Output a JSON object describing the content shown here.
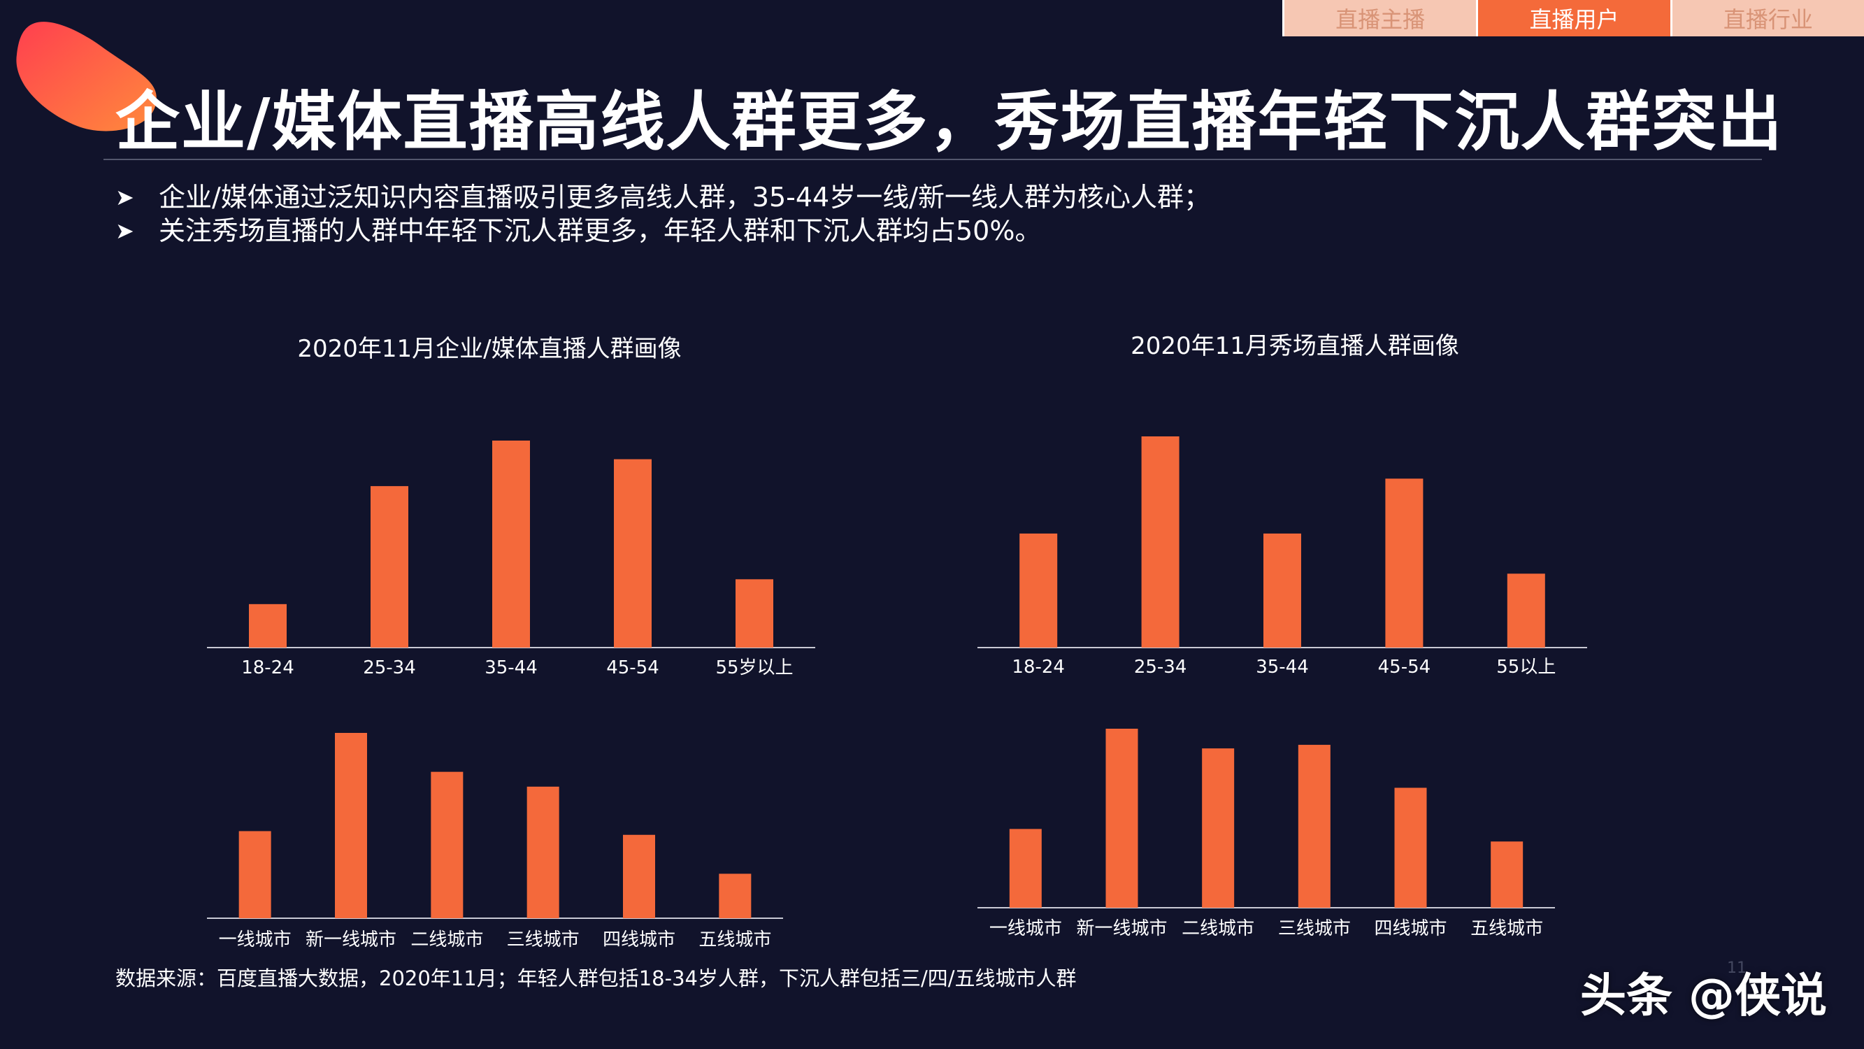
{
  "colors": {
    "background": "#11132b",
    "accent": "#f4693b",
    "tab_inactive": "#f6c7b3",
    "tab_active": "#f46a3a"
  },
  "tabs": [
    {
      "label": "直播主播",
      "active": false
    },
    {
      "label": "直播用户",
      "active": true
    },
    {
      "label": "直播行业",
      "active": false
    }
  ],
  "title": "企业/媒体直播高线人群更多，秀场直播年轻下沉人群突出",
  "bullets": [
    {
      "icon": "arrow-bullet-icon",
      "text": "企业/媒体通过泛知识内容直播吸引更多高线人群，35-44岁一线/新一线人群为核心人群；"
    },
    {
      "icon": "arrow-bullet-icon",
      "text": "关注秀场直播的人群中年轻下沉人群更多，年轻人群和下沉人群均占50%。"
    }
  ],
  "chart_titles": [
    "2020年11月企业/媒体直播人群画像",
    "2020年11月秀场直播人群画像"
  ],
  "chart_data": [
    {
      "type": "bar",
      "title": "2020年11月企业/媒体直播人群画像",
      "categories": [
        "18-24",
        "25-34",
        "35-44",
        "45-54",
        "55岁以上"
      ],
      "values": [
        21,
        78,
        100,
        91,
        33
      ],
      "ylim": [
        0,
        100
      ],
      "grid": false,
      "legend": "none"
    },
    {
      "type": "bar",
      "title": "",
      "categories": [
        "一线城市",
        "新一线城市",
        "二线城市",
        "三线城市",
        "四线城市",
        "五线城市"
      ],
      "values": [
        47,
        100,
        79,
        71,
        45,
        24
      ],
      "ylim": [
        0,
        100
      ],
      "grid": false,
      "legend": "none"
    },
    {
      "type": "bar",
      "title": "2020年11月秀场直播人群画像",
      "categories": [
        "18-24",
        "25-34",
        "35-44",
        "45-54",
        "55以上"
      ],
      "values": [
        54,
        100,
        54,
        80,
        35
      ],
      "ylim": [
        0,
        100
      ],
      "grid": false,
      "legend": "none"
    },
    {
      "type": "bar",
      "title": "",
      "categories": [
        "一线城市",
        "新一线城市",
        "二线城市",
        "三线城市",
        "四线城市",
        "五线城市"
      ],
      "values": [
        44,
        100,
        89,
        91,
        67,
        37
      ],
      "ylim": [
        0,
        100
      ],
      "grid": false,
      "legend": "none"
    }
  ],
  "source_note": "数据来源：百度直播大数据，2020年11月；年轻人群包括18-34岁人群，下沉人群包括三/四/五线城市人群",
  "watermark": "头条 @侠说",
  "page_number": "11"
}
